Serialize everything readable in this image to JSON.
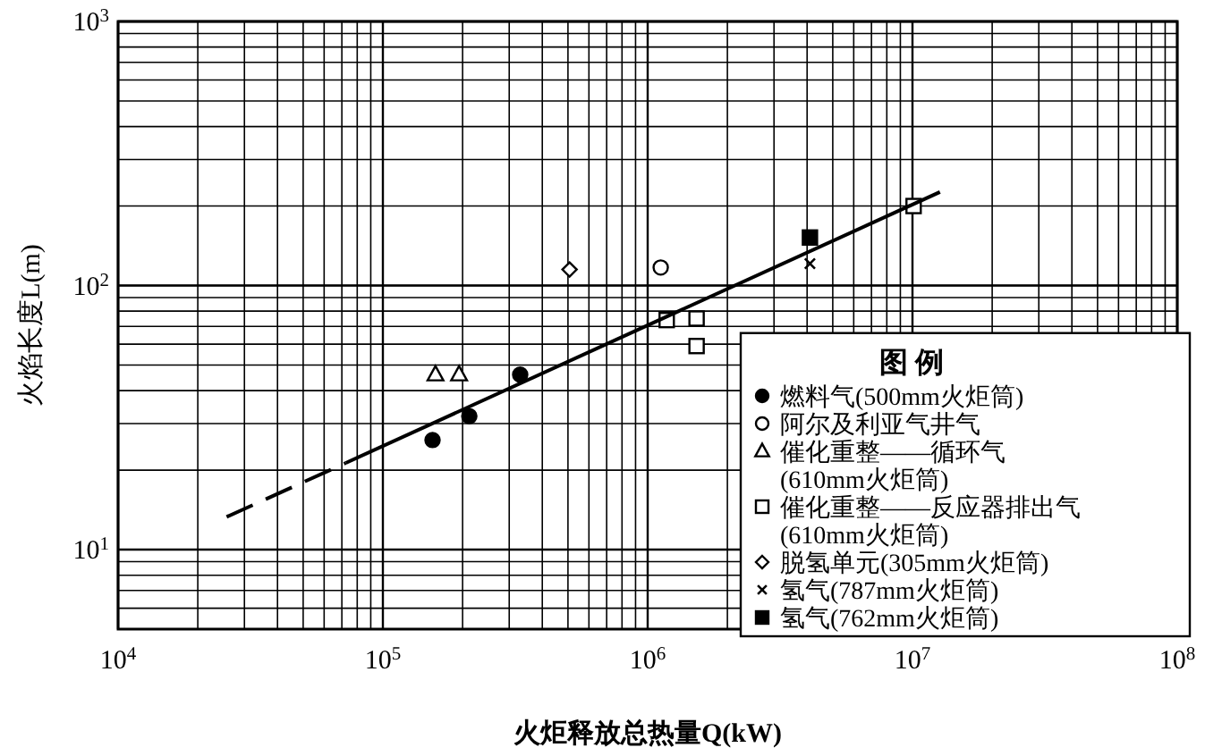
{
  "chart_data": {
    "type": "scatter",
    "xlabel": "火炬释放总热量Q(kW)",
    "ylabel": "火焰长度L(m)",
    "legend_title": "图 例",
    "log": "xy",
    "grid": true,
    "legend": "bottom right",
    "xlim": [
      10000,
      100000000
    ],
    "ylim": [
      5,
      1000
    ],
    "xticks": [
      {
        "value": 10000,
        "label": "10$^{4}$"
      },
      {
        "value": 100000,
        "label": "10$^{5}$"
      },
      {
        "value": 1000000,
        "label": "10$^{6}$"
      },
      {
        "value": 10000000,
        "label": "10$^{7}$"
      },
      {
        "value": 100000000,
        "label": "10$^{8}$"
      }
    ],
    "yticks": [
      {
        "value": 10,
        "label": "10$^{1}$"
      },
      {
        "value": 100,
        "label": "10$^{2}$"
      },
      {
        "value": 1000,
        "label": "10$^{3}$"
      }
    ],
    "series": [
      {
        "name": "燃料气(500mm火炬筒)",
        "color": "#000000",
        "marker": "circle",
        "x": [
          154000,
          212000,
          330000
        ],
        "values": [
          26,
          32,
          46
        ]
      },
      {
        "name": "阿尔及利亚气井气",
        "color": "#ffffff",
        "marker": "circle",
        "x": [
          1120000
        ],
        "values": [
          117
        ]
      },
      {
        "name": "催化重整——循环气(610mm火炬筒)",
        "color": "#ffffff",
        "marker": "triangle",
        "x": [
          158000,
          194000
        ],
        "values": [
          46,
          46
        ]
      },
      {
        "name": "催化重整——反应器排出气(610mm火炬筒)",
        "color": "#ffffff",
        "marker": "square",
        "x": [
          1180000,
          1530000,
          1530000,
          10100000
        ],
        "values": [
          74,
          75,
          59,
          200
        ]
      },
      {
        "name": "脱氢单元(305mm火炬筒)",
        "color": "#ffffff",
        "marker": "diamond",
        "x": [
          507000
        ],
        "values": [
          115
        ]
      },
      {
        "name": "氢气(787mm火炬筒)",
        "color": "#000000",
        "marker": "cross",
        "x": [
          4100000
        ],
        "values": [
          121
        ]
      },
      {
        "name": "氢气(762mm火炬筒)",
        "color": "#000000",
        "marker": "square",
        "x": [
          4100000
        ],
        "values": [
          152
        ]
      },
      {
        "type": "line",
        "color": "#000000",
        "line_style": "dashed",
        "x": [
          25700,
          72500
        ],
        "values": [
          13.3,
          21.3
        ]
      },
      {
        "type": "line",
        "color": "#000000",
        "line_style": "solid",
        "x": [
          72500,
          12700000
        ],
        "values": [
          21.3,
          226
        ]
      }
    ]
  }
}
